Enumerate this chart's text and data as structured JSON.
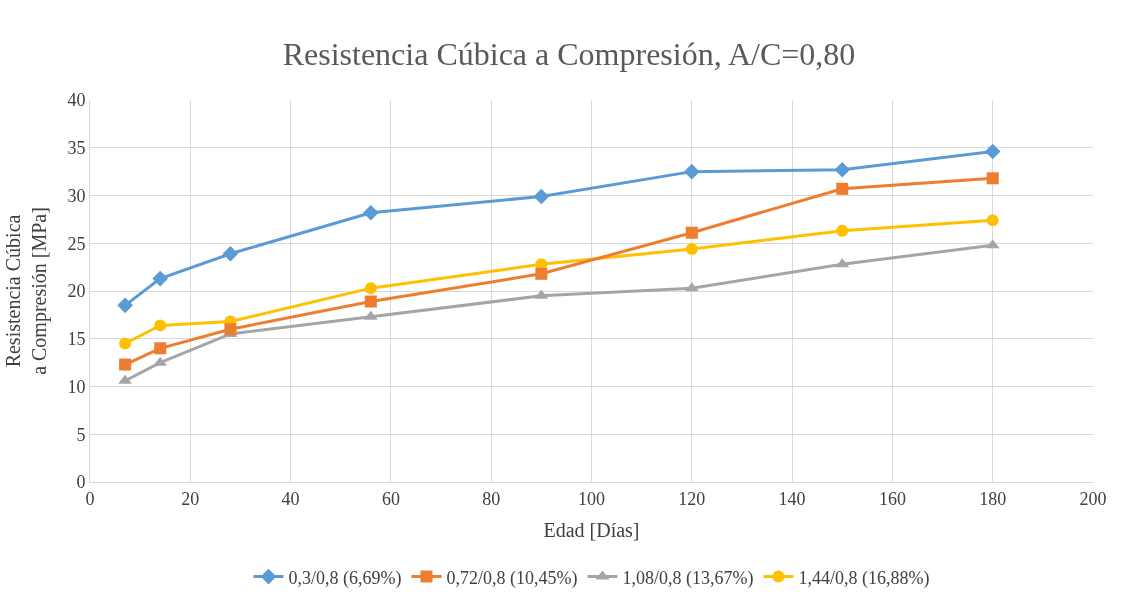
{
  "chart_data": {
    "type": "line",
    "title": "Resistencia Cúbica a Compresión, A/C=0,80",
    "xlabel": "Edad [Días]",
    "ylabel": "Resistencia Cúbica\na Compresión [MPa]",
    "x": [
      7,
      14,
      28,
      56,
      90,
      120,
      150,
      180
    ],
    "series": [
      {
        "name": "0,3/0,8 (6,69%)",
        "color": "#5b9bd5",
        "marker": "diamond",
        "values": [
          18.5,
          21.3,
          23.9,
          28.2,
          29.9,
          32.5,
          32.7,
          34.6
        ]
      },
      {
        "name": "0,72/0,8 (10,45%)",
        "color": "#ed7d31",
        "marker": "square",
        "values": [
          12.3,
          14.0,
          16.0,
          18.9,
          21.8,
          26.1,
          30.7,
          31.8
        ]
      },
      {
        "name": "1,08/0,8 (13,67%)",
        "color": "#a5a5a5",
        "marker": "triangle",
        "values": [
          10.6,
          12.5,
          15.5,
          17.3,
          19.5,
          20.3,
          22.8,
          24.8
        ]
      },
      {
        "name": "1,44/0,8 (16,88%)",
        "color": "#ffc000",
        "marker": "circle",
        "values": [
          14.5,
          16.4,
          16.8,
          20.3,
          22.8,
          24.4,
          26.3,
          27.4
        ]
      }
    ],
    "xlim": [
      0,
      200
    ],
    "xticks": [
      0,
      20,
      40,
      60,
      80,
      100,
      120,
      140,
      160,
      180,
      200
    ],
    "ylim": [
      0,
      40
    ],
    "yticks": [
      0,
      5,
      10,
      15,
      20,
      25,
      30,
      35,
      40
    ],
    "grid": true,
    "legend": "bottom",
    "line_style": "solid"
  }
}
